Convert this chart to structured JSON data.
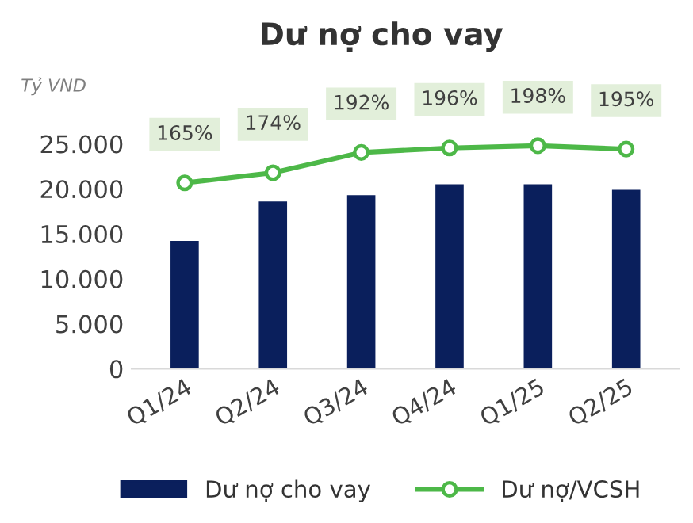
{
  "chart_data": {
    "type": "bar",
    "title": "Dư nợ cho vay",
    "ylabel": "Tỷ VND",
    "categories": [
      "Q1/24",
      "Q2/24",
      "Q3/24",
      "Q4/24",
      "Q1/25",
      "Q2/25"
    ],
    "series": [
      {
        "name": "Dư nợ cho vay",
        "color": "#0a1f5c",
        "values": [
          14200,
          18600,
          19300,
          20500,
          20500,
          19900
        ]
      },
      {
        "name": "Dư nợ/VCSH",
        "type": "line",
        "axis": "y2",
        "color": "#4db848",
        "marker": "circle",
        "values": [
          165,
          174,
          192,
          196,
          198,
          195
        ],
        "value_labels": [
          "165%",
          "174%",
          "192%",
          "196%",
          "198%",
          "195%"
        ]
      }
    ],
    "ylim": [
      0,
      25000
    ],
    "yticks": [
      {
        "value": 0,
        "label": "0"
      },
      {
        "value": 5000,
        "label": "5.000"
      },
      {
        "value": 10000,
        "label": "10.000"
      },
      {
        "value": 15000,
        "label": "15.000"
      },
      {
        "value": 20000,
        "label": "20.000"
      },
      {
        "value": 25000,
        "label": "25.000"
      }
    ],
    "grid": false,
    "legend": "bottom"
  }
}
